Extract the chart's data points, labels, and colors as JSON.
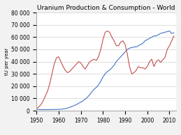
{
  "title": "Uranium Production & Consumption - World",
  "ylabel": "tU per year",
  "xlim": [
    1950,
    2013
  ],
  "ylim": [
    0,
    80000
  ],
  "yticks": [
    0,
    10000,
    20000,
    30000,
    40000,
    50000,
    60000,
    70000,
    80000
  ],
  "xticks": [
    1950,
    1960,
    1970,
    1980,
    1990,
    2000,
    2010
  ],
  "consumption_color": "#4472C4",
  "production_color": "#C0504D",
  "bg_color": "#F2F2F2",
  "plot_bg": "#FFFFFF",
  "consumption_years": [
    1950,
    1951,
    1952,
    1953,
    1954,
    1955,
    1956,
    1957,
    1958,
    1959,
    1960,
    1961,
    1962,
    1963,
    1964,
    1965,
    1966,
    1967,
    1968,
    1969,
    1970,
    1971,
    1972,
    1973,
    1974,
    1975,
    1976,
    1977,
    1978,
    1979,
    1980,
    1981,
    1982,
    1983,
    1984,
    1985,
    1986,
    1987,
    1988,
    1989,
    1990,
    1991,
    1992,
    1993,
    1994,
    1995,
    1996,
    1997,
    1998,
    1999,
    2000,
    2001,
    2002,
    2003,
    2004,
    2005,
    2006,
    2007,
    2008,
    2009,
    2010,
    2011,
    2012
  ],
  "consumption_values": [
    1000,
    1000,
    900,
    900,
    900,
    900,
    900,
    1000,
    1000,
    1000,
    1100,
    1200,
    1400,
    1700,
    2100,
    2700,
    3500,
    4200,
    5000,
    6000,
    7000,
    8000,
    9500,
    11000,
    13000,
    15500,
    17500,
    19000,
    21000,
    24000,
    27500,
    30000,
    32000,
    33000,
    35000,
    37000,
    40000,
    42000,
    44000,
    46000,
    48000,
    50000,
    51000,
    51500,
    52000,
    52000,
    53000,
    54000,
    55000,
    57000,
    58000,
    59000,
    60000,
    61000,
    61000,
    62000,
    63000,
    63500,
    64000,
    64500,
    65000,
    63000,
    63500
  ],
  "production_years": [
    1950,
    1951,
    1952,
    1953,
    1954,
    1955,
    1956,
    1957,
    1958,
    1959,
    1960,
    1961,
    1962,
    1963,
    1964,
    1965,
    1966,
    1967,
    1968,
    1969,
    1970,
    1971,
    1972,
    1973,
    1974,
    1975,
    1976,
    1977,
    1978,
    1979,
    1980,
    1981,
    1982,
    1983,
    1984,
    1985,
    1986,
    1987,
    1988,
    1989,
    1990,
    1991,
    1992,
    1993,
    1994,
    1995,
    1996,
    1997,
    1998,
    1999,
    2000,
    2001,
    2002,
    2003,
    2004,
    2005,
    2006,
    2007,
    2008,
    2009,
    2010,
    2011,
    2012
  ],
  "production_values": [
    1500,
    3000,
    5000,
    8000,
    12000,
    16000,
    22000,
    30000,
    38000,
    43000,
    44000,
    40000,
    36000,
    33000,
    31000,
    32000,
    34000,
    36000,
    38000,
    40000,
    39000,
    36000,
    34000,
    37000,
    40000,
    41000,
    42000,
    41000,
    44000,
    50000,
    58000,
    64000,
    65000,
    64000,
    60000,
    57000,
    53000,
    53000,
    56000,
    57000,
    54000,
    46000,
    36000,
    30000,
    31000,
    33000,
    36000,
    35000,
    35000,
    34000,
    36000,
    40000,
    42000,
    36000,
    40000,
    41500,
    39500,
    41500,
    43500,
    50000,
    53000,
    57000,
    61000
  ]
}
